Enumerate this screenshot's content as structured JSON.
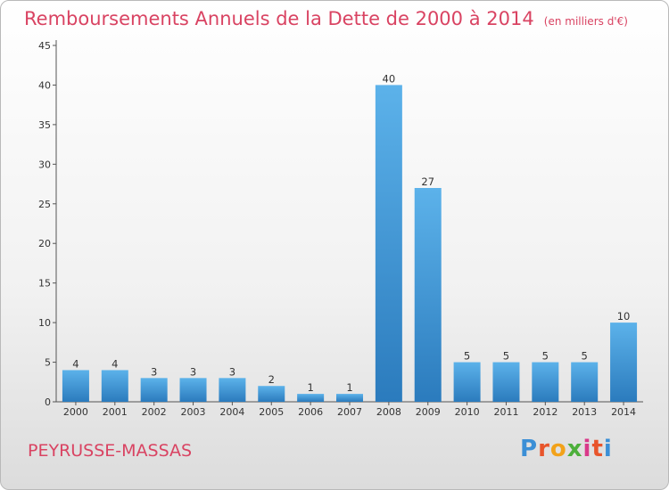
{
  "title": "Remboursements Annuels de la Dette de 2000 à 2014",
  "unit": "(en milliers d'€)",
  "place": "PEYRUSSE-MASSAS",
  "logo": {
    "text": "Proxiti",
    "colors": [
      "#3b8fd6",
      "#e8552b",
      "#f2a21a",
      "#4caf3a",
      "#d9398a",
      "#e8552b",
      "#3b8fd6"
    ]
  },
  "colors": {
    "bar_top": "#5cb2ea",
    "bar_bottom": "#2b7bbd",
    "title": "#d94362"
  },
  "chart_data": {
    "type": "bar",
    "categories": [
      "2000",
      "2001",
      "2002",
      "2003",
      "2004",
      "2005",
      "2006",
      "2007",
      "2008",
      "2009",
      "2010",
      "2011",
      "2012",
      "2013",
      "2014"
    ],
    "values": [
      4,
      4,
      3,
      3,
      3,
      2,
      1,
      1,
      40,
      27,
      5,
      5,
      5,
      5,
      10
    ],
    "data_labels": [
      "4",
      "4",
      "3",
      "3",
      "3",
      "2",
      "1",
      "1",
      "40",
      "27",
      "5",
      "5",
      "5",
      "5",
      "10"
    ],
    "ylim": [
      0,
      45
    ],
    "yticks": [
      0,
      5,
      10,
      15,
      20,
      25,
      30,
      35,
      40,
      45
    ],
    "grid": false,
    "legend": "none"
  }
}
